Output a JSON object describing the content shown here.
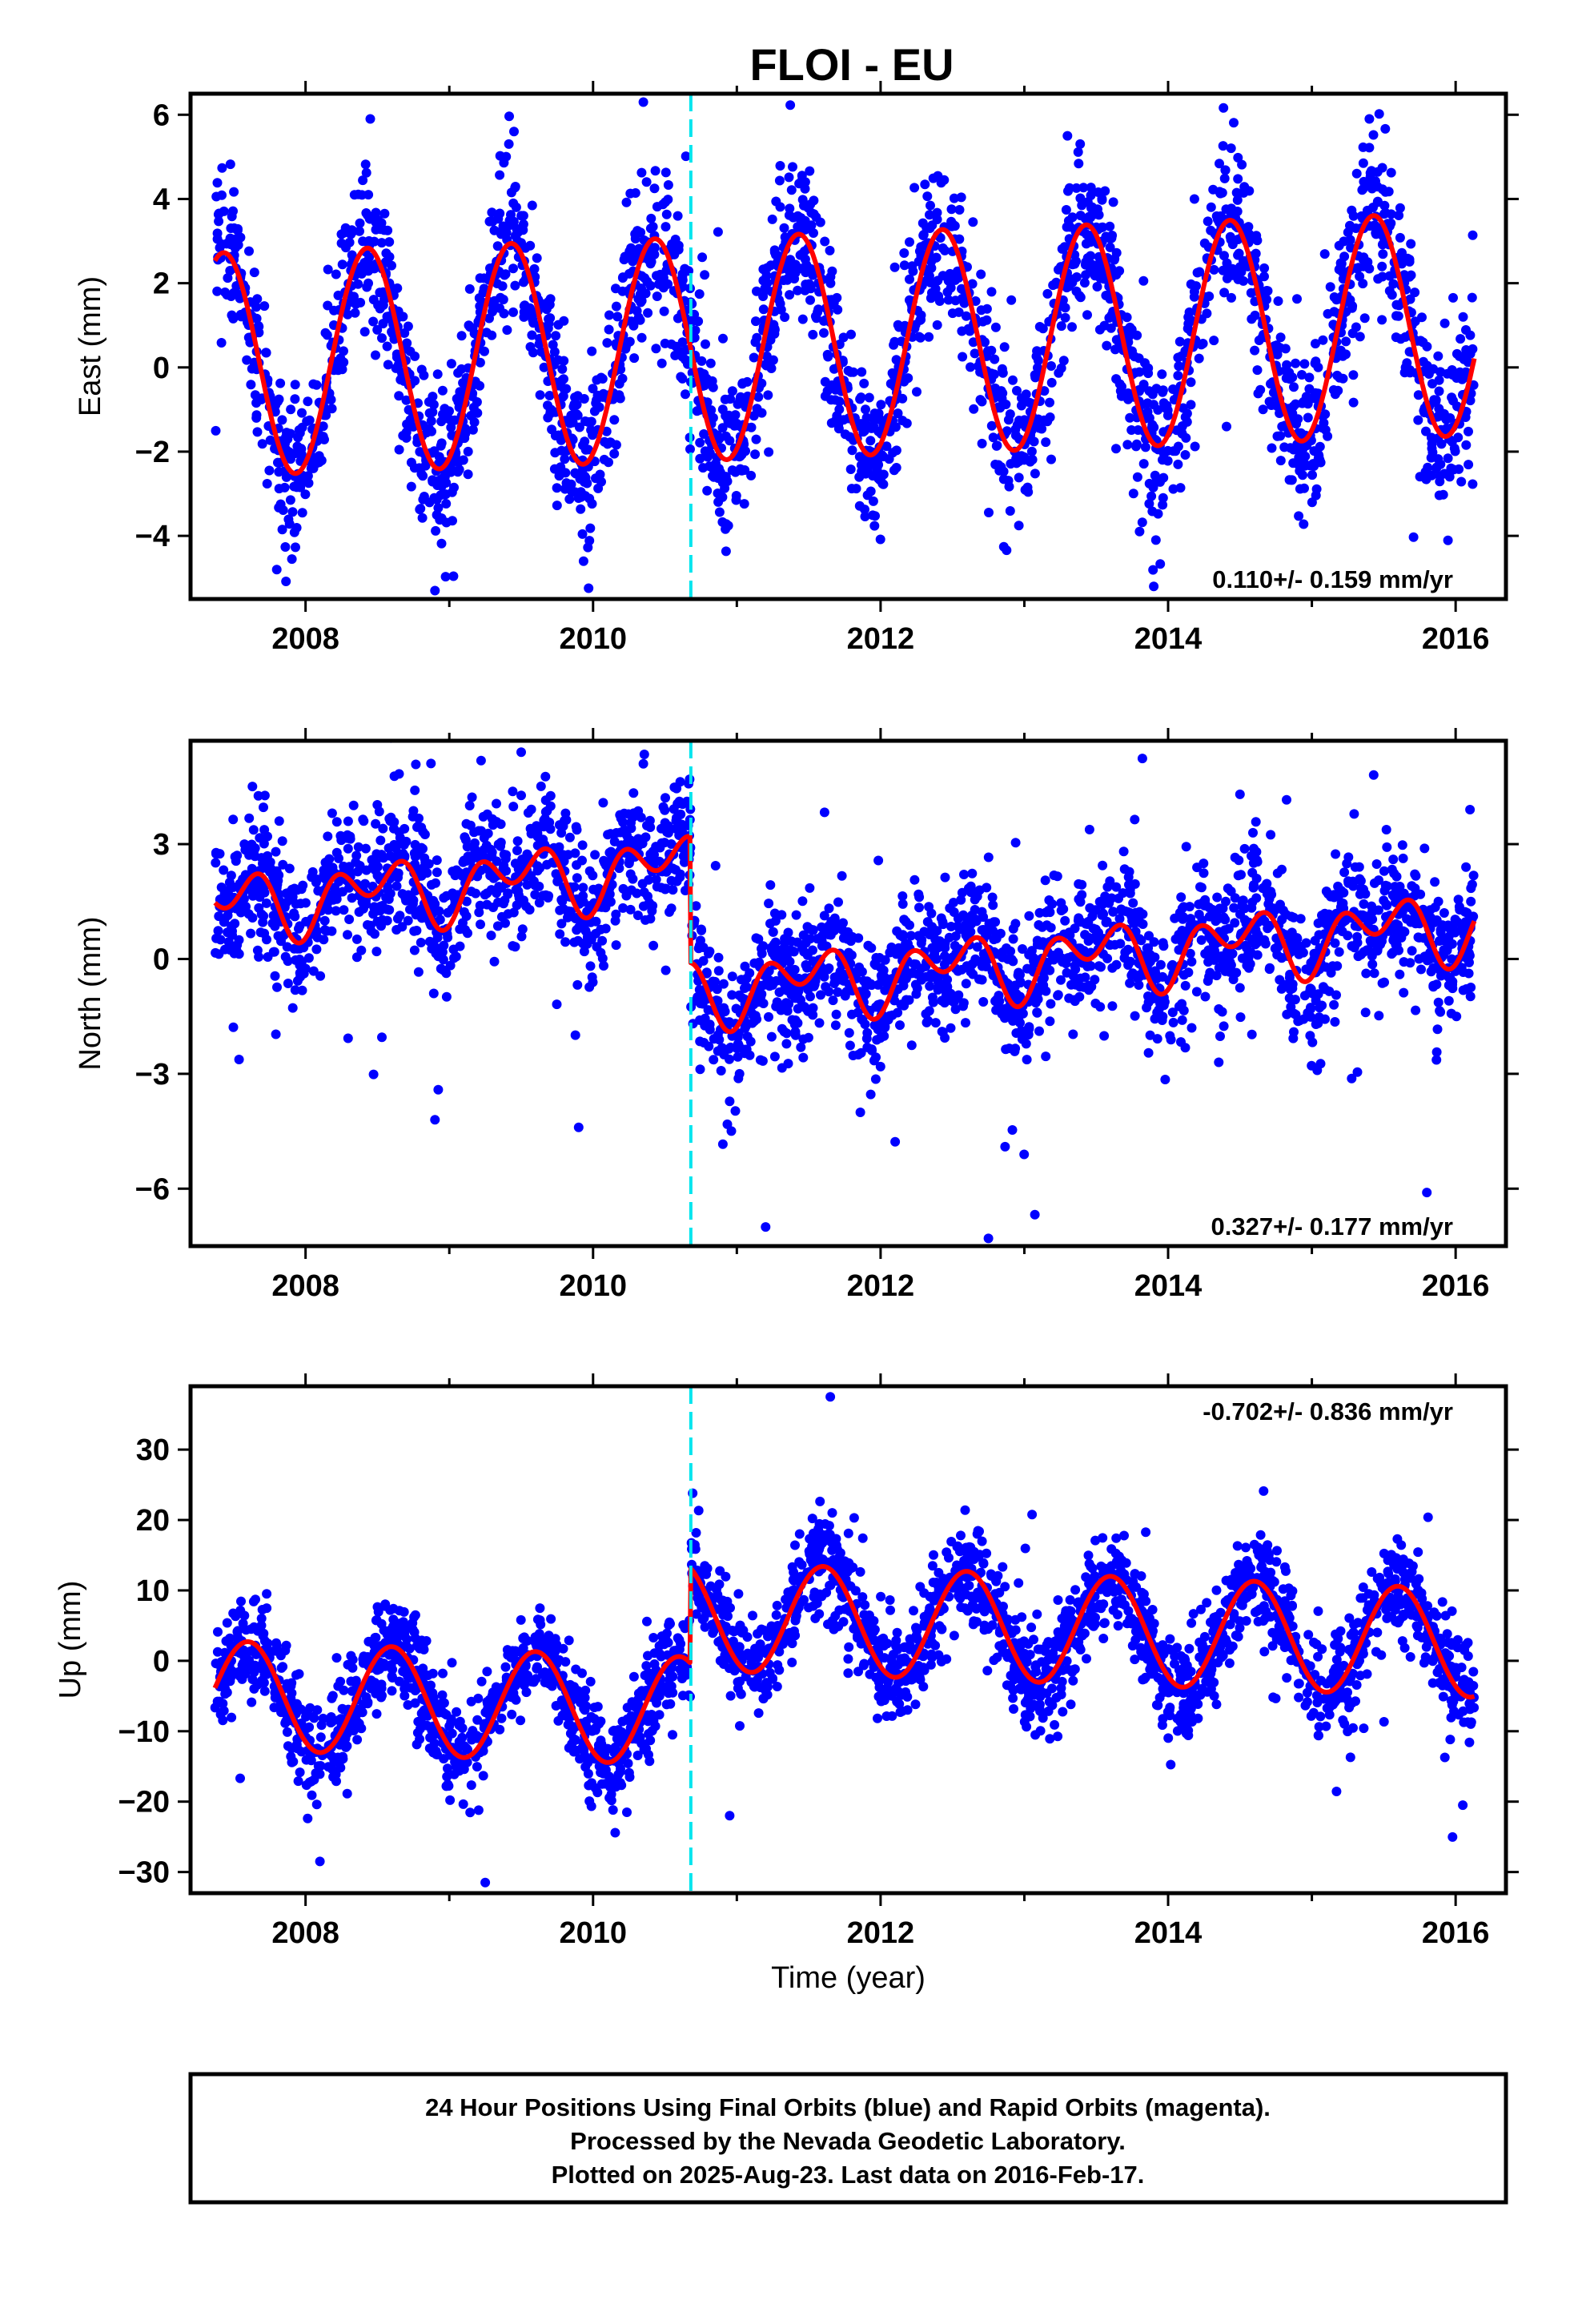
{
  "title": "FLOI - EU",
  "caption": {
    "lines": [
      "24 Hour Positions Using Final Orbits (blue) and Rapid Orbits (magenta).",
      "Processed by the Nevada Geodetic Laboratory.",
      "Plotted on 2025-Aug-23. Last data on 2016-Feb-17."
    ]
  },
  "colors": {
    "data_points": "#0000ff",
    "model_curve": "#ff0000",
    "break_line": "#00e5ee",
    "frame": "#000000"
  },
  "chart_data": [
    {
      "type": "scatter",
      "panel": "east",
      "ylabel": "East (mm)",
      "xlim": [
        2007.2,
        2016.35
      ],
      "ylim": [
        -5.5,
        6.5
      ],
      "xticks": [
        2008,
        2010,
        2012,
        2014,
        2016
      ],
      "yticks": [
        -4,
        -2,
        0,
        2,
        4,
        6
      ],
      "annotation": "0.110+/- 0.159 mm/yr",
      "annotation_position": "bottom-right",
      "offset_epoch": 2010.68,
      "series": [
        {
          "name": "",
          "role": "data",
          "start": 2007.37,
          "end": 2016.13,
          "n": 2700,
          "seed": 11,
          "scatter": 0.95,
          "outlier_rate": 0.05,
          "outlier_scale": 2.2,
          "extra_points": [
            [
              2008.45,
              5.9
            ],
            [
              2010.35,
              6.3
            ],
            [
              2009.45,
              5.6
            ],
            [
              2013.3,
              5.5
            ],
            [
              2015.4,
              5.9
            ],
            [
              2008.9,
              -5.3
            ],
            [
              2013.9,
              -5.2
            ],
            [
              2007.8,
              -4.8
            ]
          ]
        },
        {
          "name": "",
          "role": "model",
          "start": 2007.37,
          "end": 2016.13,
          "mean": 0.55,
          "rate": 0.11,
          "ref_epoch": 2011.75,
          "offset_at_break": 0.0,
          "annual_amp": 2.65,
          "annual_peak": 0.43,
          "semiannual_amp": 0.0,
          "semiannual_peak": 0.0
        }
      ]
    },
    {
      "type": "scatter",
      "panel": "north",
      "ylabel": "North (mm)",
      "xlim": [
        2007.2,
        2016.35
      ],
      "ylim": [
        -7.5,
        5.7
      ],
      "xticks": [
        2008,
        2010,
        2012,
        2014,
        2016
      ],
      "yticks": [
        -6,
        -3,
        0,
        3
      ],
      "annotation": "0.327+/- 0.177 mm/yr",
      "annotation_position": "bottom-right",
      "offset_epoch": 2010.68,
      "series": [
        {
          "name": "",
          "role": "data",
          "start": 2007.37,
          "end": 2016.13,
          "n": 2700,
          "seed": 23,
          "scatter": 0.85,
          "outlier_rate": 0.05,
          "outlier_scale": 2.6,
          "extra_points": [
            [
              2009.5,
              5.4
            ],
            [
              2010.35,
              5.1
            ],
            [
              2014.5,
              4.3
            ],
            [
              2016.1,
              3.9
            ],
            [
              2012.75,
              -7.3
            ],
            [
              2011.2,
              -7.0
            ],
            [
              2015.8,
              -6.1
            ],
            [
              2008.9,
              -4.2
            ],
            [
              2009.9,
              -4.4
            ]
          ]
        },
        {
          "name": "",
          "role": "model",
          "start": 2007.37,
          "end": 2016.13,
          "mean": -0.5,
          "rate": 0.327,
          "ref_epoch": 2011.75,
          "offset_at_break": 3.3,
          "annual_amp": 0.55,
          "annual_peak": 0.48,
          "semiannual_amp": 0.6,
          "semiannual_peak": 0.2
        }
      ]
    },
    {
      "type": "scatter",
      "panel": "up",
      "ylabel": "Up (mm)",
      "xlabel": "Time (year)",
      "xlim": [
        2007.2,
        2016.35
      ],
      "ylim": [
        -33,
        39
      ],
      "xticks": [
        2008,
        2010,
        2012,
        2014,
        2016
      ],
      "yticks": [
        -30,
        -20,
        -10,
        0,
        10,
        20,
        30
      ],
      "annotation": "-0.702+/- 0.836 mm/yr",
      "annotation_position": "top-right",
      "offset_epoch": 2010.68,
      "series": [
        {
          "name": "",
          "role": "data",
          "start": 2007.37,
          "end": 2016.13,
          "n": 2700,
          "seed": 37,
          "scatter": 3.6,
          "outlier_rate": 0.04,
          "outlier_scale": 2.3,
          "extra_points": [
            [
              2011.65,
              37.5
            ],
            [
              2009.25,
              -31.5
            ],
            [
              2008.1,
              -28.5
            ],
            [
              2010.95,
              -22.0
            ],
            [
              2016.05,
              -20.5
            ]
          ]
        },
        {
          "name": "",
          "role": "model",
          "start": 2007.37,
          "end": 2016.13,
          "mean": 5.6,
          "rate": -0.702,
          "ref_epoch": 2011.75,
          "offset_at_break": -13.5,
          "annual_amp": 7.7,
          "annual_peak": 0.6,
          "semiannual_amp": 0.0,
          "semiannual_peak": 0.0
        }
      ]
    }
  ]
}
